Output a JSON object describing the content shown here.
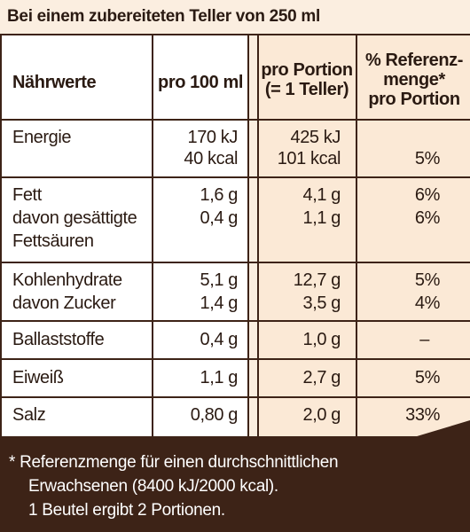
{
  "header": {
    "title": "Bei einem zubereiteten Teller von 250 ml"
  },
  "columns": {
    "nutrient": "Nährwerte",
    "per100": "pro 100 ml",
    "portion_line1": "pro Portion",
    "portion_line2": "(= 1 Teller)",
    "ref_line1": "% Referenz-",
    "ref_line2": "menge*",
    "ref_line3": "pro Portion"
  },
  "rows": [
    {
      "name": [
        "Energie",
        ""
      ],
      "per100": [
        "170 kJ",
        "40 kcal"
      ],
      "portion": [
        "425 kJ",
        "101 kcal"
      ],
      "ref": [
        "",
        "5%"
      ]
    },
    {
      "name": [
        "Fett",
        "davon gesättigte",
        "Fettsäuren"
      ],
      "per100": [
        "1,6 g",
        "0,4 g"
      ],
      "portion": [
        "4,1 g",
        "1,1 g"
      ],
      "ref": [
        "6%",
        "6%"
      ]
    },
    {
      "name": [
        "Kohlenhydrate",
        "davon Zucker"
      ],
      "per100": [
        "5,1 g",
        "1,4 g"
      ],
      "portion": [
        "12,7 g",
        "3,5 g"
      ],
      "ref": [
        "5%",
        "4%"
      ]
    },
    {
      "name": [
        "Ballaststoffe"
      ],
      "per100": [
        "0,4 g"
      ],
      "portion": [
        "1,0 g"
      ],
      "ref": [
        "–"
      ]
    },
    {
      "name": [
        "Eiweiß"
      ],
      "per100": [
        "1,1 g"
      ],
      "portion": [
        "2,7 g"
      ],
      "ref": [
        "5%"
      ]
    },
    {
      "name": [
        "Salz"
      ],
      "per100": [
        "0,80 g"
      ],
      "portion": [
        "2,0 g"
      ],
      "ref": [
        "33%"
      ]
    }
  ],
  "footer": {
    "line1": "* Referenzmenge für einen durchschnittlichen",
    "line2": "Erwachsenen (8400 kJ/2000 kcal).",
    "line3": "1 Beutel ergibt 2 Portionen."
  }
}
